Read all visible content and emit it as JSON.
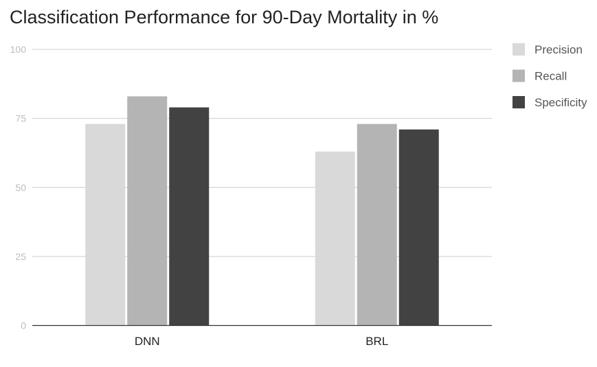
{
  "chart_data": {
    "type": "bar",
    "title": "Classification Performance for 90-Day Mortality in %",
    "xlabel": "",
    "ylabel": "",
    "categories": [
      "DNN",
      "BRL"
    ],
    "series": [
      {
        "name": "Precision",
        "values": [
          73,
          63
        ],
        "color": "#d9d9d9"
      },
      {
        "name": "Recall",
        "values": [
          83,
          73
        ],
        "color": "#b4b4b4"
      },
      {
        "name": "Specificity",
        "values": [
          79,
          71
        ],
        "color": "#424242"
      }
    ],
    "ylim": [
      0,
      100
    ],
    "yticks": [
      "0",
      "25",
      "50",
      "75",
      "100"
    ],
    "grid": true,
    "legend_position": "right"
  }
}
